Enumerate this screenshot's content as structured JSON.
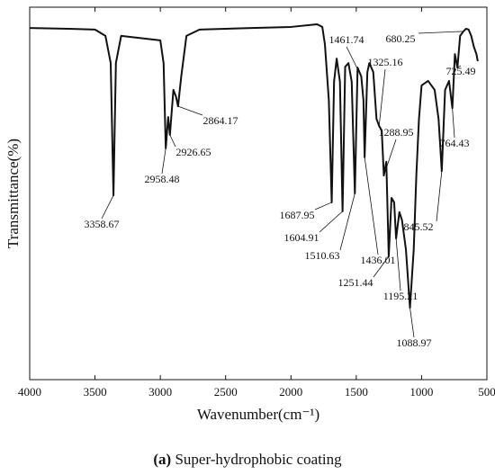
{
  "chart_data": {
    "type": "line",
    "xlabel": "Wavenumber(cm⁻¹)",
    "ylabel": "Transmittance(%)",
    "caption_letter": "(a)",
    "caption": "Super-hydrophobic coating",
    "xlim": [
      4000,
      500
    ],
    "xticks": [
      4000,
      3500,
      3000,
      2500,
      2000,
      1500,
      1000,
      500
    ],
    "ylim": [
      0,
      100
    ],
    "x": [
      4000,
      3700,
      3500,
      3420,
      3380,
      3358.67,
      3340,
      3300,
      3000,
      2975,
      2958.48,
      2940,
      2926.65,
      2900,
      2880,
      2864.17,
      2840,
      2800,
      2700,
      2300,
      2000,
      1800,
      1760,
      1740,
      1710,
      1687.95,
      1670,
      1650,
      1625,
      1604.91,
      1585,
      1560,
      1535,
      1510.63,
      1490,
      1461.74,
      1445,
      1436.01,
      1415,
      1400,
      1370,
      1345,
      1325.16,
      1305,
      1288.95,
      1270,
      1251.44,
      1230,
      1210,
      1195.21,
      1170,
      1150,
      1120,
      1088.97,
      1060,
      1040,
      1020,
      1000,
      950,
      900,
      870,
      845.52,
      820,
      790,
      764.43,
      745,
      725.49,
      705,
      680.25,
      660,
      640,
      620,
      600,
      580,
      570
    ],
    "series": [
      {
        "name": "spectrum",
        "color": "#111111",
        "values": [
          94.4,
          94.2,
          94.0,
          92.3,
          85.0,
          49.5,
          85.0,
          92.3,
          91.1,
          85.0,
          62.1,
          70.5,
          65.7,
          77.8,
          76.0,
          73.4,
          81.4,
          92.3,
          94.0,
          94.4,
          94.7,
          95.4,
          94.7,
          90.0,
          75.0,
          47.6,
          80.0,
          86.2,
          80.0,
          45.2,
          84.0,
          85.0,
          80.0,
          50.0,
          83.8,
          81.4,
          75.0,
          59.7,
          82.6,
          85.0,
          82.6,
          70.0,
          68.1,
          66.9,
          54.8,
          58.5,
          33.1,
          48.8,
          47.6,
          37.9,
          45.0,
          42.8,
          35.0,
          19.3,
          35.0,
          55.0,
          70.0,
          79.0,
          80.2,
          77.8,
          70.0,
          56.0,
          77.8,
          80.2,
          72.9,
          87.4,
          83.8,
          92.3,
          93.5,
          94.2,
          94.0,
          92.3,
          89.4,
          87.4,
          85.5
        ]
      }
    ],
    "annotations": [
      {
        "x": 3358.67,
        "y": 49.5
      },
      {
        "x": 2958.48,
        "y": 62.1
      },
      {
        "x": 2926.65,
        "y": 65.7
      },
      {
        "x": 2864.17,
        "y": 73.4
      },
      {
        "x": 1687.95,
        "y": 47.6
      },
      {
        "x": 1604.91,
        "y": 45.2
      },
      {
        "x": 1510.63,
        "y": 50.0
      },
      {
        "x": 1436.01,
        "y": 59.7
      },
      {
        "x": 1461.74,
        "y": 81.4
      },
      {
        "x": 1325.16,
        "y": 68.1
      },
      {
        "x": 1288.95,
        "y": 54.8
      },
      {
        "x": 1251.44,
        "y": 33.1
      },
      {
        "x": 1195.21,
        "y": 37.9
      },
      {
        "x": 1088.97,
        "y": 19.3
      },
      {
        "x": 845.52,
        "y": 56.0
      },
      {
        "x": 764.43,
        "y": 72.9
      },
      {
        "x": 725.49,
        "y": 83.8
      },
      {
        "x": 680.25,
        "y": 93.5
      }
    ]
  }
}
